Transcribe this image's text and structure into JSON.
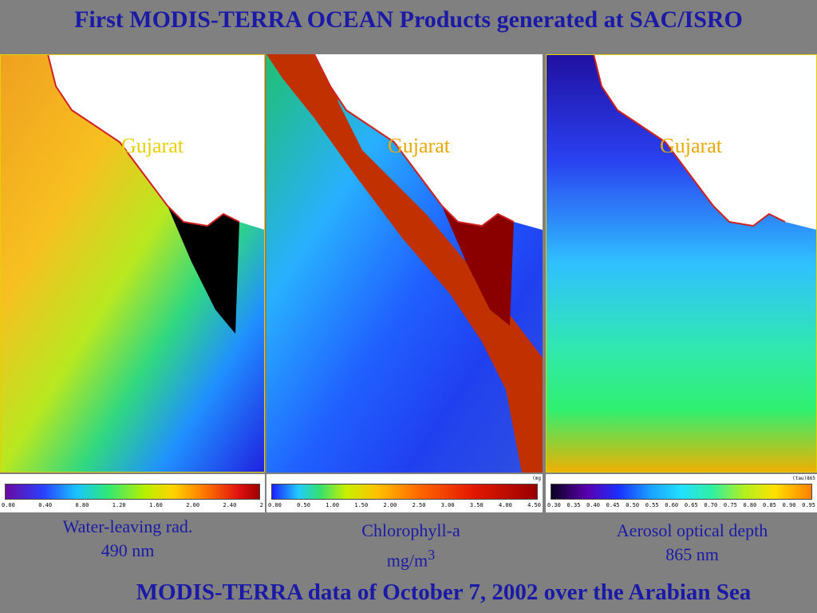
{
  "title": "First MODIS-TERRA OCEAN Products generated at SAC/ISRO",
  "region_label": "Gujarat",
  "panels": [
    {
      "name": "Water-leaving radiance 490 nm",
      "ticks": [
        "0.00",
        "0.40",
        "0.80",
        "1.20",
        "1.60",
        "2.00",
        "2.40",
        "2"
      ],
      "caption_line1": "Water-leaving rad.",
      "caption_line2": "490 nm"
    },
    {
      "name": "Chlorophyll-a",
      "unit_tag": "(mg",
      "ticks": [
        "0.00",
        "0.50",
        "1.00",
        "1.50",
        "2.00",
        "2.50",
        "3.00",
        "3.50",
        "4.00",
        "4.50"
      ],
      "caption_line1": "Chlorophyll-a",
      "caption_line2": "mg/m",
      "caption_sup": "3"
    },
    {
      "name": "Aerosol optical depth",
      "unit_tag": "(tau)865",
      "ticks": [
        "0.30",
        "0.35",
        "0.40",
        "0.45",
        "0.50",
        "0.55",
        "0.60",
        "0.65",
        "0.70",
        "0.75",
        "0.80",
        "0.85",
        "0.90",
        "0.95"
      ],
      "caption_line1": "Aerosol optical depth",
      "caption_line2": "865 nm"
    }
  ],
  "footer": "MODIS-TERRA data of October 7, 2002 over the Arabian Sea"
}
